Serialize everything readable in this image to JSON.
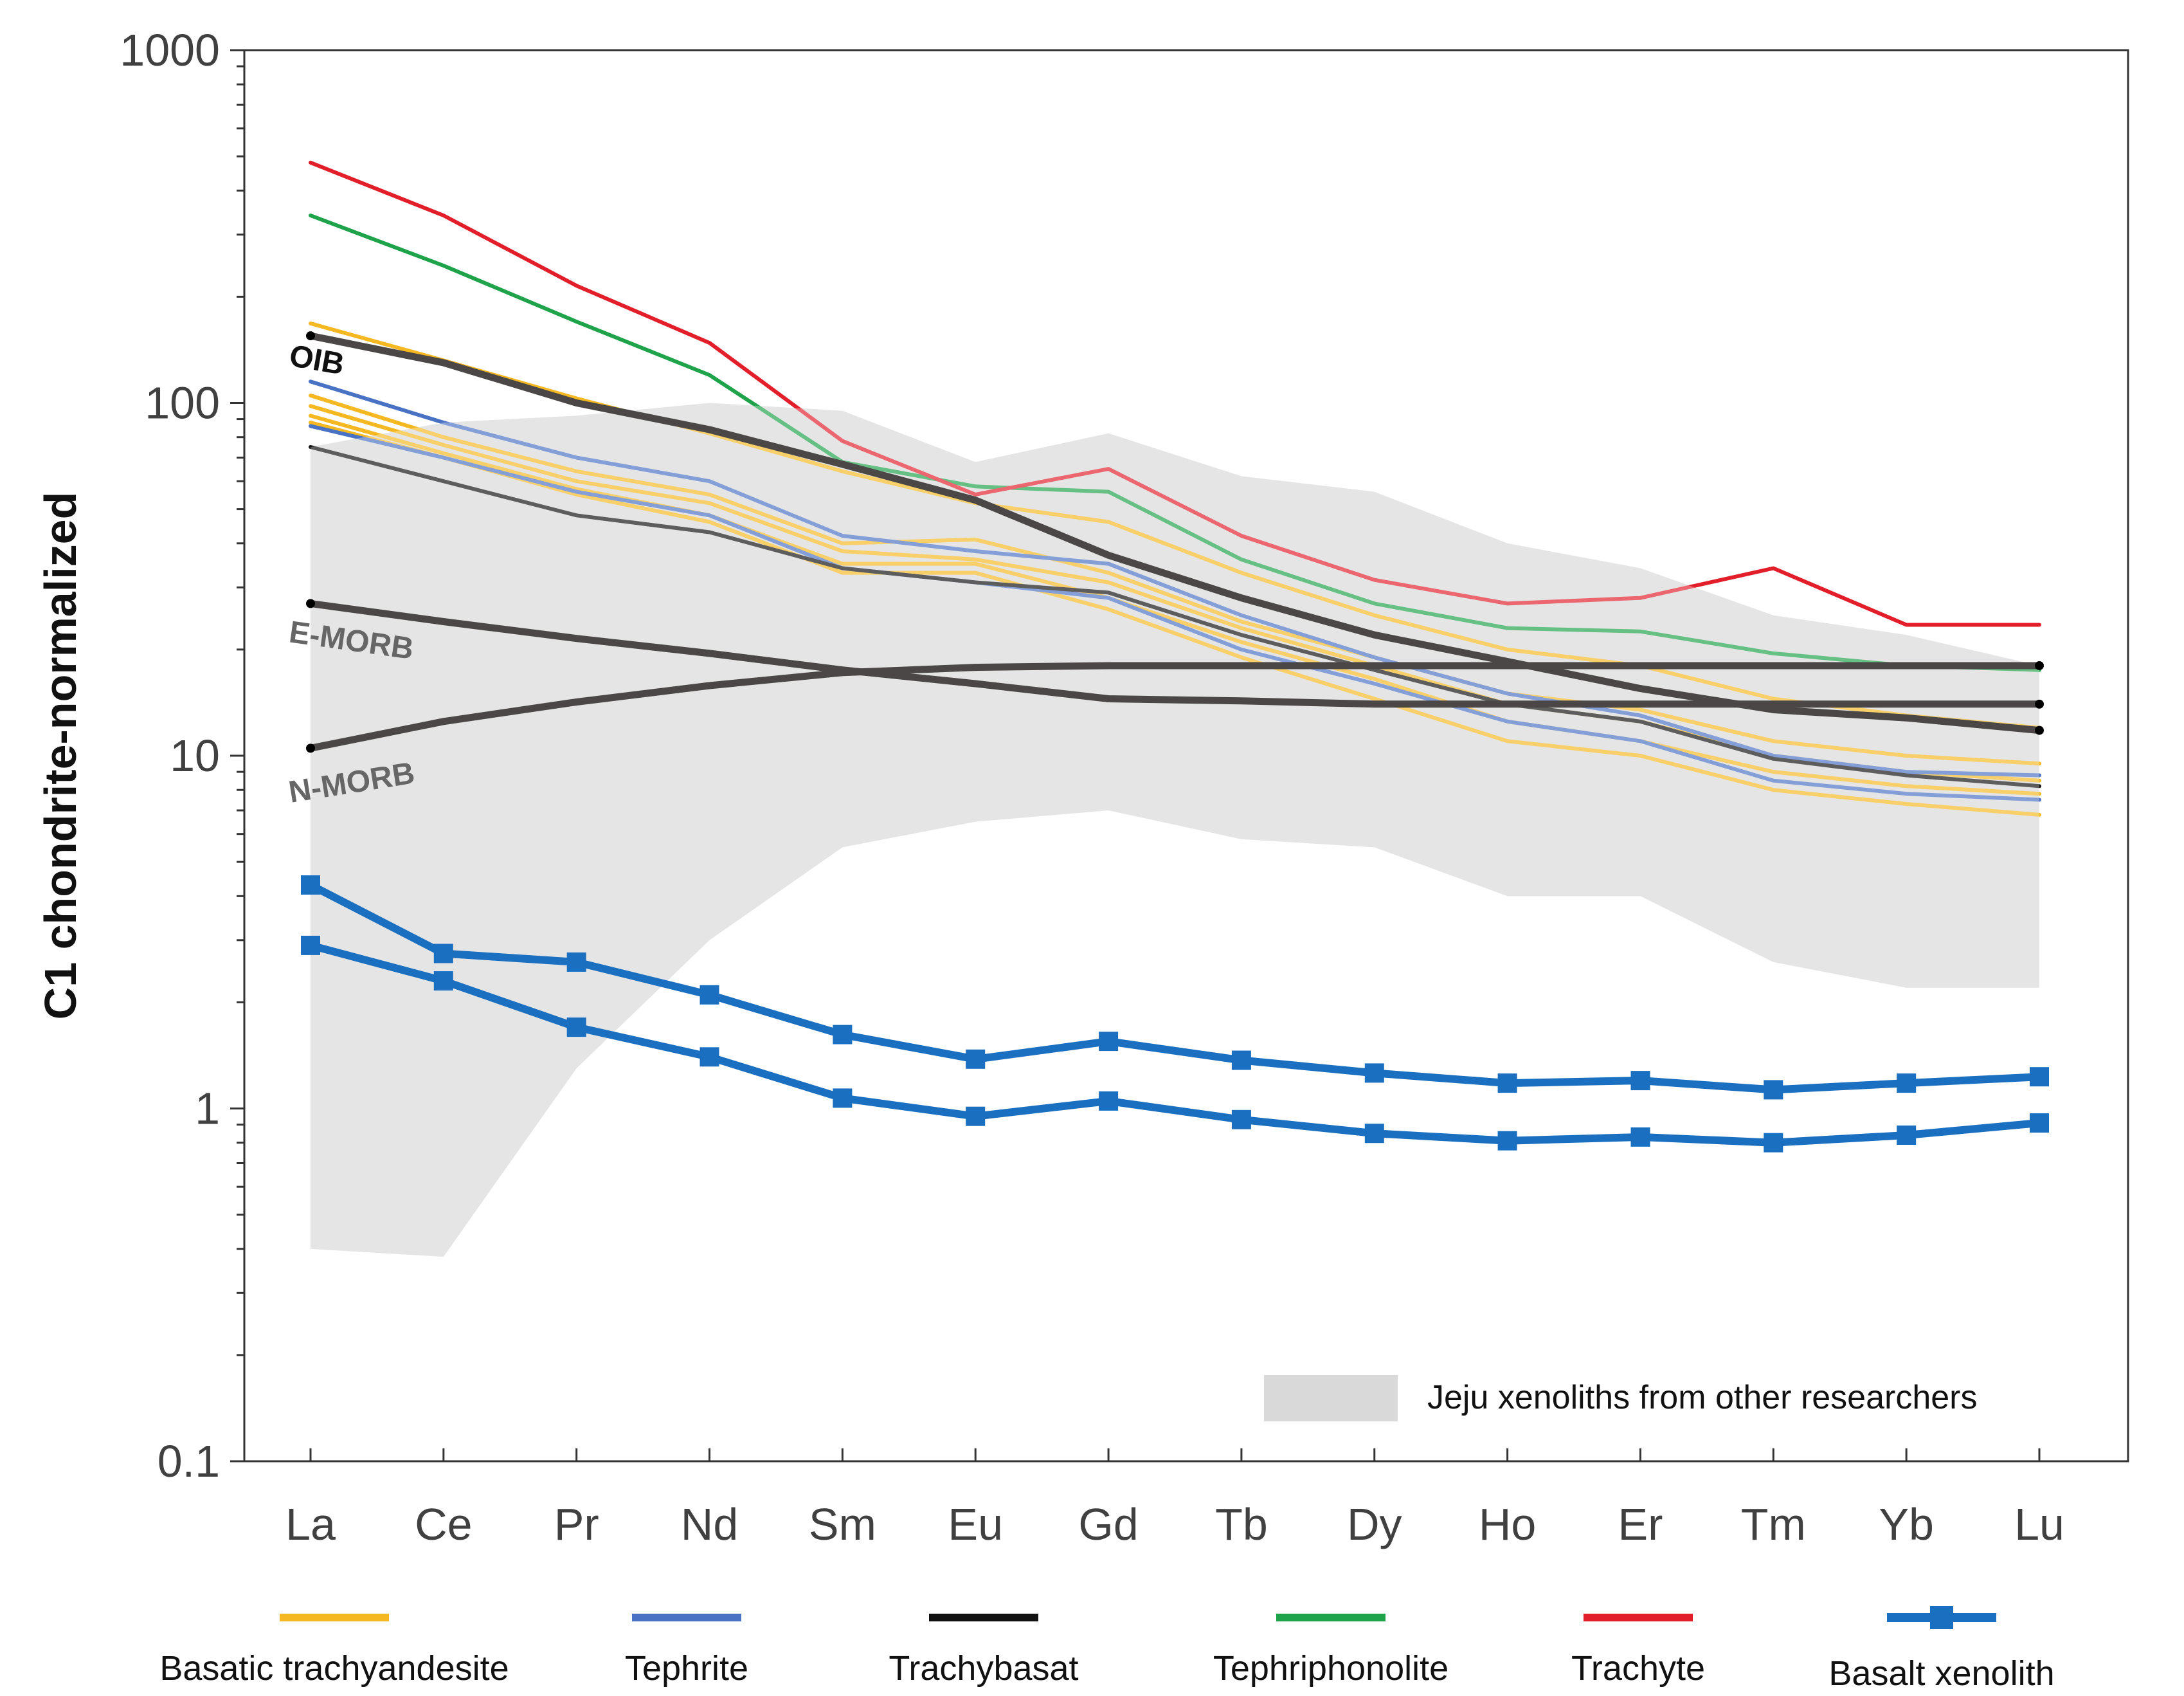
{
  "chart_data": {
    "type": "line",
    "title": "",
    "xlabel": "",
    "ylabel": "C1 chondrite-normalized",
    "yscale": "log",
    "ylim": [
      0.1,
      1000
    ],
    "y_ticks": [
      "1000",
      "100",
      "10",
      "1",
      "0.1"
    ],
    "categories": [
      "La",
      "Ce",
      "Pr",
      "Nd",
      "Sm",
      "Eu",
      "Gd",
      "Tb",
      "Dy",
      "Ho",
      "Er",
      "Tm",
      "Yb",
      "Lu"
    ],
    "colors": {
      "basaltic_trachyandesite": "#f5b821",
      "tephrite": "#4a72c4",
      "trachybasalt": "#111111",
      "tephriphonolite": "#1ea34a",
      "trachyte": "#e21e2a",
      "basalt_xenolith": "#1a6fc0",
      "reference": "#4a4746",
      "field": "#d9d9d9"
    },
    "field": {
      "name": "Jeju xenoliths from other researchers",
      "upper": [
        75,
        88,
        92,
        100,
        95,
        68,
        82,
        62,
        56,
        40,
        34,
        25,
        22,
        18
      ],
      "lower": [
        0.4,
        0.38,
        1.3,
        3.0,
        5.5,
        6.5,
        7.0,
        5.8,
        5.5,
        4.0,
        4.0,
        2.6,
        2.2,
        2.2
      ]
    },
    "references": [
      {
        "name": "OIB",
        "values": [
          155,
          130,
          100,
          84,
          67,
          53,
          37,
          28,
          22,
          18.5,
          15.5,
          13.5,
          12.8,
          11.8
        ]
      },
      {
        "name": "E-MORB",
        "values": [
          27,
          24,
          21.5,
          19.5,
          17.5,
          16,
          14.5,
          14.3,
          14,
          14,
          14,
          14,
          14,
          14
        ]
      },
      {
        "name": "N-MORB",
        "values": [
          10.5,
          12.5,
          14.2,
          15.8,
          17.2,
          17.8,
          18,
          18,
          18,
          18,
          18,
          18,
          18,
          18
        ]
      }
    ],
    "series": [
      {
        "name": "Basatic trachyandesite",
        "group": "basaltic_trachyandesite",
        "values": [
          168,
          132,
          103,
          82,
          64,
          52,
          46,
          33,
          25,
          20,
          18,
          14.5,
          13,
          12
        ]
      },
      {
        "name": "Basatic trachyandesite",
        "group": "basaltic_trachyandesite",
        "values": [
          105,
          80,
          64,
          55,
          40,
          41,
          33,
          24,
          19,
          15,
          13.5,
          11,
          10,
          9.5
        ]
      },
      {
        "name": "Basatic trachyandesite",
        "group": "basaltic_trachyandesite",
        "values": [
          98,
          76,
          60,
          52,
          38,
          36,
          31,
          23,
          18,
          14,
          12.5,
          10,
          9,
          8.5
        ]
      },
      {
        "name": "Basatic trachyandesite",
        "group": "basaltic_trachyandesite",
        "values": [
          92,
          72,
          57,
          48,
          35,
          35,
          28,
          21,
          16.5,
          12.5,
          11,
          9,
          8.2,
          7.8
        ]
      },
      {
        "name": "Basatic trachyandesite",
        "group": "basaltic_trachyandesite",
        "values": [
          88,
          70,
          55,
          46,
          33,
          33,
          26,
          19,
          14.5,
          11,
          10,
          8,
          7.3,
          6.8
        ]
      },
      {
        "name": "Tephrite",
        "group": "tephrite",
        "values": [
          115,
          88,
          70,
          60,
          42,
          38,
          35,
          25,
          19,
          15,
          13,
          10,
          9,
          8.8
        ]
      },
      {
        "name": "Tephrite",
        "group": "tephrite",
        "values": [
          86,
          70,
          56,
          48,
          34,
          31,
          28,
          20,
          16,
          12.5,
          11,
          8.5,
          7.8,
          7.5
        ]
      },
      {
        "name": "Trachybasat",
        "group": "trachybasalt",
        "values": [
          75,
          60,
          48,
          43,
          34,
          31,
          29,
          22,
          17.5,
          14,
          12.5,
          9.8,
          8.8,
          8.2
        ]
      },
      {
        "name": "Tephriphonolite",
        "group": "tephriphonolite",
        "values": [
          340,
          245,
          170,
          120,
          68,
          58,
          56,
          36,
          27,
          23,
          22.5,
          19.5,
          18,
          17.5
        ]
      },
      {
        "name": "Trachyte",
        "group": "trachyte",
        "values": [
          480,
          340,
          215,
          148,
          78,
          55,
          65,
          42,
          31.5,
          27,
          28,
          34,
          23.5,
          23.5
        ]
      },
      {
        "name": "Basalt xenolith",
        "group": "basalt_xenolith",
        "markers": true,
        "values": [
          4.3,
          2.75,
          2.6,
          2.1,
          1.62,
          1.38,
          1.55,
          1.37,
          1.26,
          1.18,
          1.2,
          1.13,
          1.18,
          1.23
        ]
      },
      {
        "name": "Basalt xenolith",
        "group": "basalt_xenolith",
        "markers": true,
        "values": [
          2.9,
          2.3,
          1.7,
          1.4,
          1.07,
          0.95,
          1.05,
          0.93,
          0.85,
          0.81,
          0.83,
          0.8,
          0.84,
          0.91
        ]
      }
    ],
    "legend": [
      {
        "label": "Basatic trachyandesite",
        "group": "basaltic_trachyandesite"
      },
      {
        "label": "Tephrite",
        "group": "tephrite"
      },
      {
        "label": "Trachybasat",
        "group": "trachybasalt"
      },
      {
        "label": "Tephriphonolite",
        "group": "tephriphonolite"
      },
      {
        "label": "Trachyte",
        "group": "trachyte"
      },
      {
        "label": "Basalt xenolith",
        "group": "basalt_xenolith"
      }
    ],
    "legend_position": "bottom"
  }
}
